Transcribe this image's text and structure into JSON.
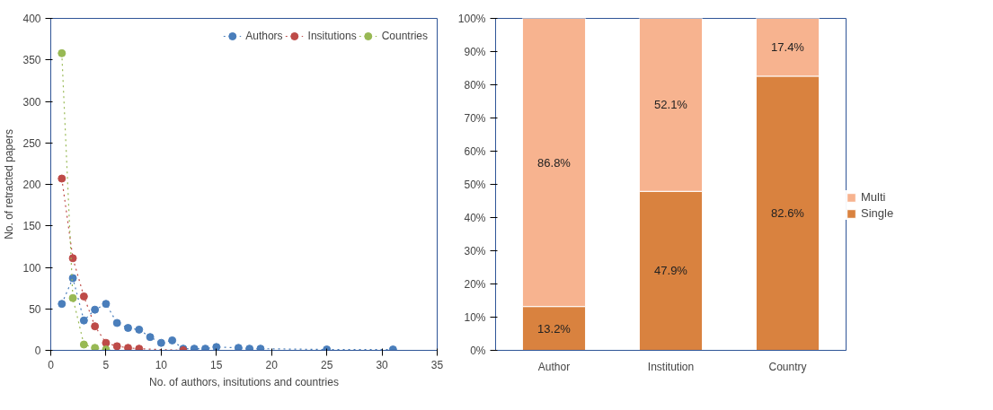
{
  "chart_data": [
    {
      "type": "line",
      "xlabel": "No. of authors, insitutions and countries",
      "ylabel": "No. of retracted papers",
      "xlim": [
        0,
        35
      ],
      "xticks": [
        0,
        5,
        10,
        15,
        20,
        25,
        30,
        35
      ],
      "ylim": [
        0,
        400
      ],
      "yticks": [
        0,
        50,
        100,
        150,
        200,
        250,
        300,
        350,
        400
      ],
      "grid": false,
      "legend": "top right",
      "marker": "circle",
      "line_style": "dotted",
      "series": [
        {
          "name": "Authors",
          "color": "#4a7ebb",
          "x": [
            1,
            2,
            3,
            4,
            5,
            6,
            7,
            8,
            9,
            10,
            11,
            12,
            13,
            14,
            15,
            17,
            18,
            19,
            25,
            31
          ],
          "values": [
            56,
            87,
            36,
            49,
            56,
            33,
            27,
            25,
            16,
            9,
            12,
            2,
            2,
            2,
            4,
            3,
            2,
            2,
            1,
            1
          ]
        },
        {
          "name": "Insitutions",
          "color": "#be4b48",
          "x": [
            1,
            2,
            3,
            4,
            5,
            6,
            7,
            8,
            12
          ],
          "values": [
            207,
            111,
            65,
            29,
            9,
            5,
            3,
            2,
            0
          ]
        },
        {
          "name": "Countries",
          "color": "#98b954",
          "x": [
            1,
            2,
            3,
            4,
            5
          ],
          "values": [
            358,
            63,
            7,
            3,
            1
          ]
        }
      ]
    },
    {
      "type": "bar",
      "categories": [
        "Author",
        "Institution",
        "Country"
      ],
      "stacked": true,
      "legend": "right",
      "grid": false,
      "ylim": [
        0,
        100
      ],
      "yticks": [
        {
          "value": 0,
          "label": "0%"
        },
        {
          "value": 10,
          "label": "10%"
        },
        {
          "value": 20,
          "label": "20%"
        },
        {
          "value": 30,
          "label": "30%"
        },
        {
          "value": 40,
          "label": "40%"
        },
        {
          "value": 50,
          "label": "50%"
        },
        {
          "value": 60,
          "label": "60%"
        },
        {
          "value": 70,
          "label": "70%"
        },
        {
          "value": 80,
          "label": "80%"
        },
        {
          "value": 90,
          "label": "90%"
        },
        {
          "value": 100,
          "label": "100%"
        }
      ],
      "series": [
        {
          "name": "Single",
          "color": "#d9823f",
          "values": [
            13.2,
            47.9,
            82.6
          ],
          "value_labels": [
            "13.2%",
            "47.9%",
            "82.6%"
          ]
        },
        {
          "name": "Multi",
          "color": "#f7b38f",
          "values": [
            86.8,
            52.1,
            17.4
          ],
          "value_labels": [
            "86.8%",
            "52.1%",
            "17.4%"
          ]
        }
      ]
    }
  ]
}
